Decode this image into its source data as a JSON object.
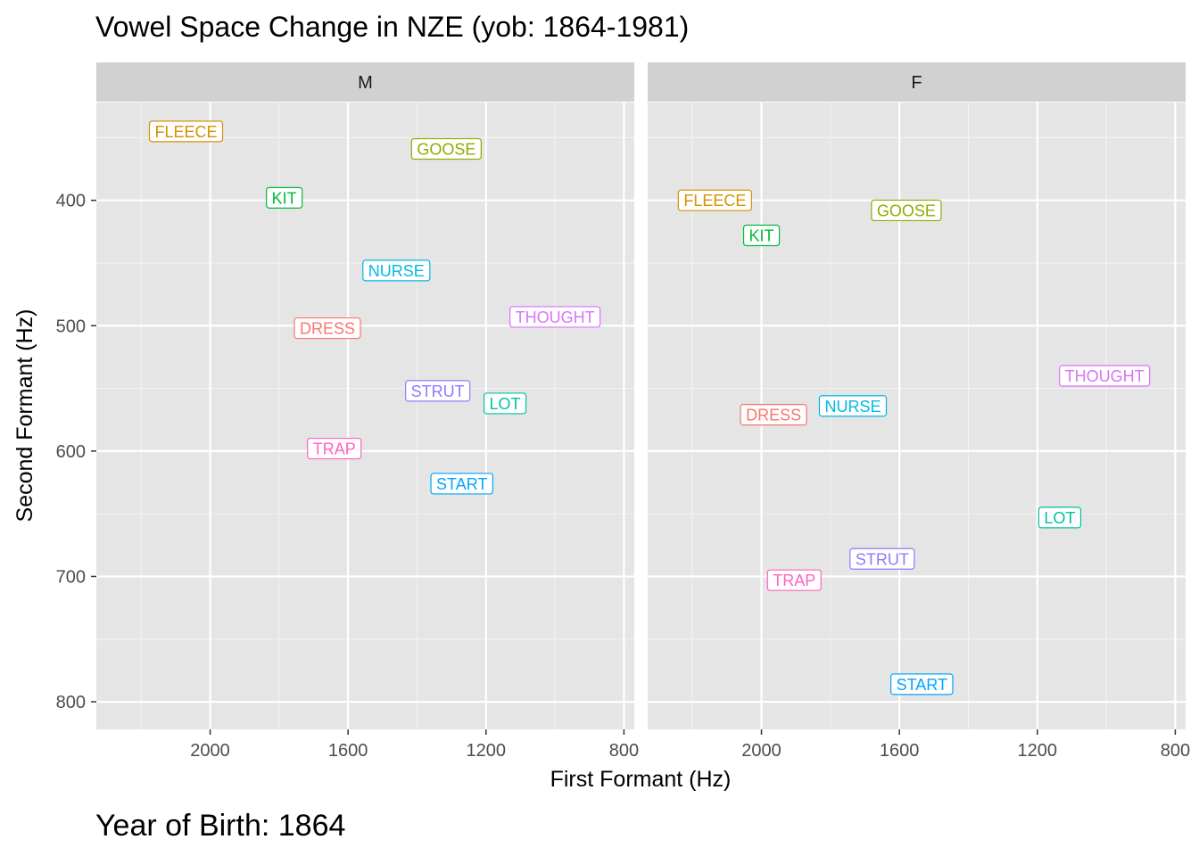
{
  "title": "Vowel Space Change in NZE (yob: 1864-1981)",
  "caption": "Year of Birth: 1864",
  "xlabel": "First Formant (Hz)",
  "ylabel": "Second Formant (Hz)",
  "colors": {
    "panel_bg": "#E5E5E5",
    "strip_bg": "#D1D1D1",
    "grid_major": "#FFFFFF",
    "grid_minor": "#F2F2F2",
    "tick_text": "#4D4D4D"
  },
  "vowel_colors": {
    "DRESS": "#F8766D",
    "FLEECE": "#D39200",
    "GOOSE": "#93AA00",
    "KIT": "#00BA38",
    "LOT": "#00C19F",
    "NURSE": "#00B9E3",
    "START": "#00A5FF",
    "STRUT": "#8B7CFF",
    "THOUGHT": "#DB72FB",
    "TRAP": "#FF61C3"
  },
  "chart_data": {
    "type": "scatter",
    "label_style": "text labels in bordered boxes",
    "x_axis": {
      "reversed": true,
      "xlim": [
        2330,
        770
      ],
      "ticks": [
        2000,
        1600,
        1200,
        800
      ],
      "minor_ticks": [
        2200,
        1800,
        1400,
        1000
      ]
    },
    "y_axis": {
      "reversed": true,
      "ylim": [
        322,
        822
      ],
      "ticks": [
        400,
        500,
        600,
        700,
        800
      ],
      "minor_ticks": [
        350,
        450,
        550,
        650,
        750
      ]
    },
    "facets": [
      {
        "name": "M",
        "points": [
          {
            "label": "FLEECE",
            "x": 2070,
            "y": 345
          },
          {
            "label": "GOOSE",
            "x": 1315,
            "y": 359
          },
          {
            "label": "KIT",
            "x": 1785,
            "y": 398
          },
          {
            "label": "NURSE",
            "x": 1460,
            "y": 456
          },
          {
            "label": "THOUGHT",
            "x": 1000,
            "y": 493
          },
          {
            "label": "DRESS",
            "x": 1660,
            "y": 502
          },
          {
            "label": "STRUT",
            "x": 1340,
            "y": 552
          },
          {
            "label": "LOT",
            "x": 1145,
            "y": 562
          },
          {
            "label": "TRAP",
            "x": 1640,
            "y": 598
          },
          {
            "label": "START",
            "x": 1270,
            "y": 626
          }
        ]
      },
      {
        "name": "F",
        "points": [
          {
            "label": "FLEECE",
            "x": 2135,
            "y": 400
          },
          {
            "label": "GOOSE",
            "x": 1580,
            "y": 408
          },
          {
            "label": "KIT",
            "x": 2000,
            "y": 428
          },
          {
            "label": "THOUGHT",
            "x": 1005,
            "y": 540
          },
          {
            "label": "NURSE",
            "x": 1735,
            "y": 564
          },
          {
            "label": "DRESS",
            "x": 1965,
            "y": 571
          },
          {
            "label": "LOT",
            "x": 1135,
            "y": 653
          },
          {
            "label": "STRUT",
            "x": 1650,
            "y": 686
          },
          {
            "label": "TRAP",
            "x": 1905,
            "y": 703
          },
          {
            "label": "START",
            "x": 1535,
            "y": 786
          }
        ]
      }
    ]
  }
}
